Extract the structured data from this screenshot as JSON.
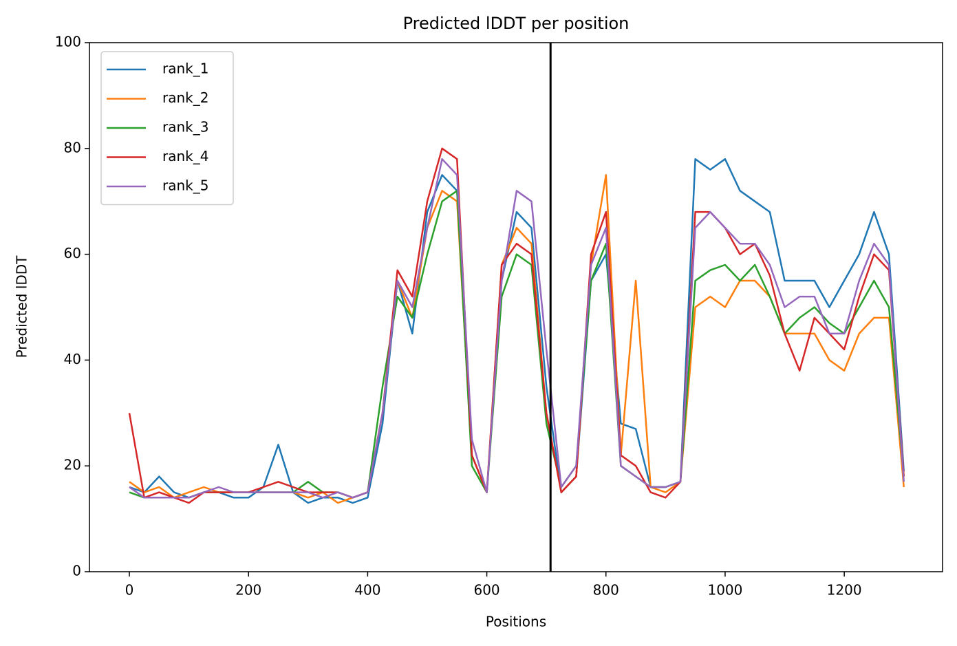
{
  "chart_data": {
    "type": "line",
    "title": "Predicted lDDT per position",
    "xlabel": "Positions",
    "ylabel": "Predicted lDDT",
    "x": [
      0,
      25,
      50,
      75,
      100,
      125,
      150,
      175,
      200,
      225,
      250,
      275,
      300,
      325,
      350,
      375,
      400,
      425,
      450,
      475,
      500,
      525,
      550,
      575,
      600,
      625,
      650,
      675,
      700,
      725,
      750,
      775,
      800,
      825,
      850,
      875,
      900,
      925,
      950,
      975,
      1000,
      1025,
      1050,
      1075,
      1100,
      1125,
      1150,
      1175,
      1200,
      1225,
      1250,
      1275,
      1300
    ],
    "series": [
      {
        "name": "rank_1",
        "color": "#1f77b4",
        "values": [
          16,
          15,
          18,
          15,
          14,
          15,
          15,
          14,
          14,
          16,
          24,
          15,
          13,
          14,
          14,
          13,
          14,
          28,
          55,
          45,
          68,
          75,
          72,
          22,
          15,
          55,
          68,
          65,
          35,
          15,
          18,
          55,
          60,
          28,
          27,
          16,
          16,
          17,
          78,
          76,
          78,
          72,
          70,
          68,
          55,
          55,
          55,
          50,
          55,
          60,
          68,
          60,
          19
        ]
      },
      {
        "name": "rank_2",
        "color": "#ff7f0e",
        "values": [
          17,
          15,
          16,
          14,
          15,
          16,
          15,
          15,
          15,
          15,
          15,
          15,
          14,
          15,
          13,
          14,
          15,
          30,
          55,
          48,
          65,
          72,
          70,
          22,
          15,
          58,
          65,
          62,
          30,
          15,
          18,
          58,
          75,
          22,
          55,
          16,
          15,
          17,
          50,
          52,
          50,
          55,
          55,
          52,
          45,
          45,
          45,
          40,
          38,
          45,
          48,
          48,
          16
        ]
      },
      {
        "name": "rank_3",
        "color": "#2ca02c",
        "values": [
          15,
          14,
          14,
          14,
          14,
          15,
          15,
          15,
          15,
          15,
          15,
          15,
          17,
          15,
          15,
          14,
          15,
          35,
          52,
          48,
          60,
          70,
          72,
          20,
          15,
          52,
          60,
          58,
          28,
          16,
          20,
          55,
          62,
          20,
          18,
          16,
          16,
          17,
          55,
          57,
          58,
          55,
          58,
          52,
          45,
          48,
          50,
          47,
          45,
          50,
          55,
          50,
          18
        ]
      },
      {
        "name": "rank_4",
        "color": "#d62728",
        "values": [
          30,
          14,
          15,
          14,
          13,
          15,
          15,
          15,
          15,
          16,
          17,
          16,
          15,
          15,
          15,
          14,
          15,
          30,
          57,
          52,
          70,
          80,
          78,
          22,
          15,
          58,
          62,
          60,
          30,
          15,
          18,
          60,
          68,
          22,
          20,
          15,
          14,
          17,
          68,
          68,
          65,
          60,
          62,
          56,
          45,
          38,
          48,
          45,
          42,
          52,
          60,
          57,
          18
        ]
      },
      {
        "name": "rank_5",
        "color": "#9467bd",
        "values": [
          16,
          14,
          14,
          14,
          14,
          15,
          16,
          15,
          15,
          15,
          15,
          15,
          15,
          14,
          15,
          14,
          15,
          30,
          55,
          50,
          65,
          78,
          75,
          25,
          15,
          55,
          72,
          70,
          42,
          16,
          20,
          58,
          65,
          20,
          18,
          16,
          16,
          17,
          65,
          68,
          65,
          62,
          62,
          58,
          50,
          52,
          52,
          45,
          45,
          55,
          62,
          58,
          17
        ]
      }
    ],
    "vline": 707,
    "vline_color": "#000000",
    "xlim": [
      -67,
      1365
    ],
    "xticks": [
      0,
      200,
      400,
      600,
      800,
      1000,
      1200
    ],
    "ylim": [
      0,
      100
    ],
    "yticks": [
      0,
      20,
      40,
      60,
      80,
      100
    ],
    "grid": false,
    "legend": "upper left"
  }
}
